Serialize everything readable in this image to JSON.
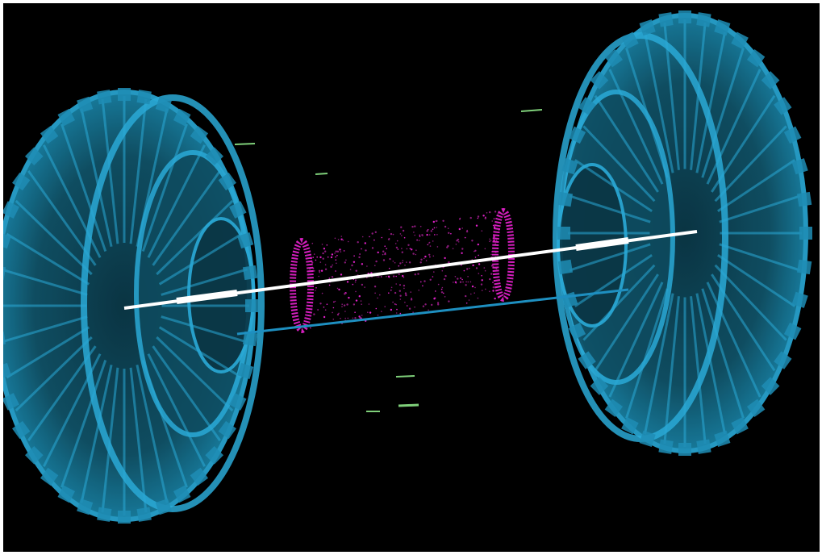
{
  "scene": {
    "background": "#000000",
    "detector_color": "#2aa9d6",
    "detector_fill": "#0f4a5c",
    "beam_color": "#ffffff",
    "track_color": "#1e8fc0",
    "hit_color": "#e020c8",
    "segment_color": "#7fd07a"
  },
  "objects": [
    {
      "name": "left-endcap-disk",
      "type": "detector-wheel"
    },
    {
      "name": "right-endcap-disk",
      "type": "detector-wheel"
    },
    {
      "name": "beam-line",
      "type": "track"
    },
    {
      "name": "lower-track",
      "type": "track"
    },
    {
      "name": "hit-cloud",
      "type": "hits"
    },
    {
      "name": "green-segments",
      "type": "segments"
    }
  ]
}
